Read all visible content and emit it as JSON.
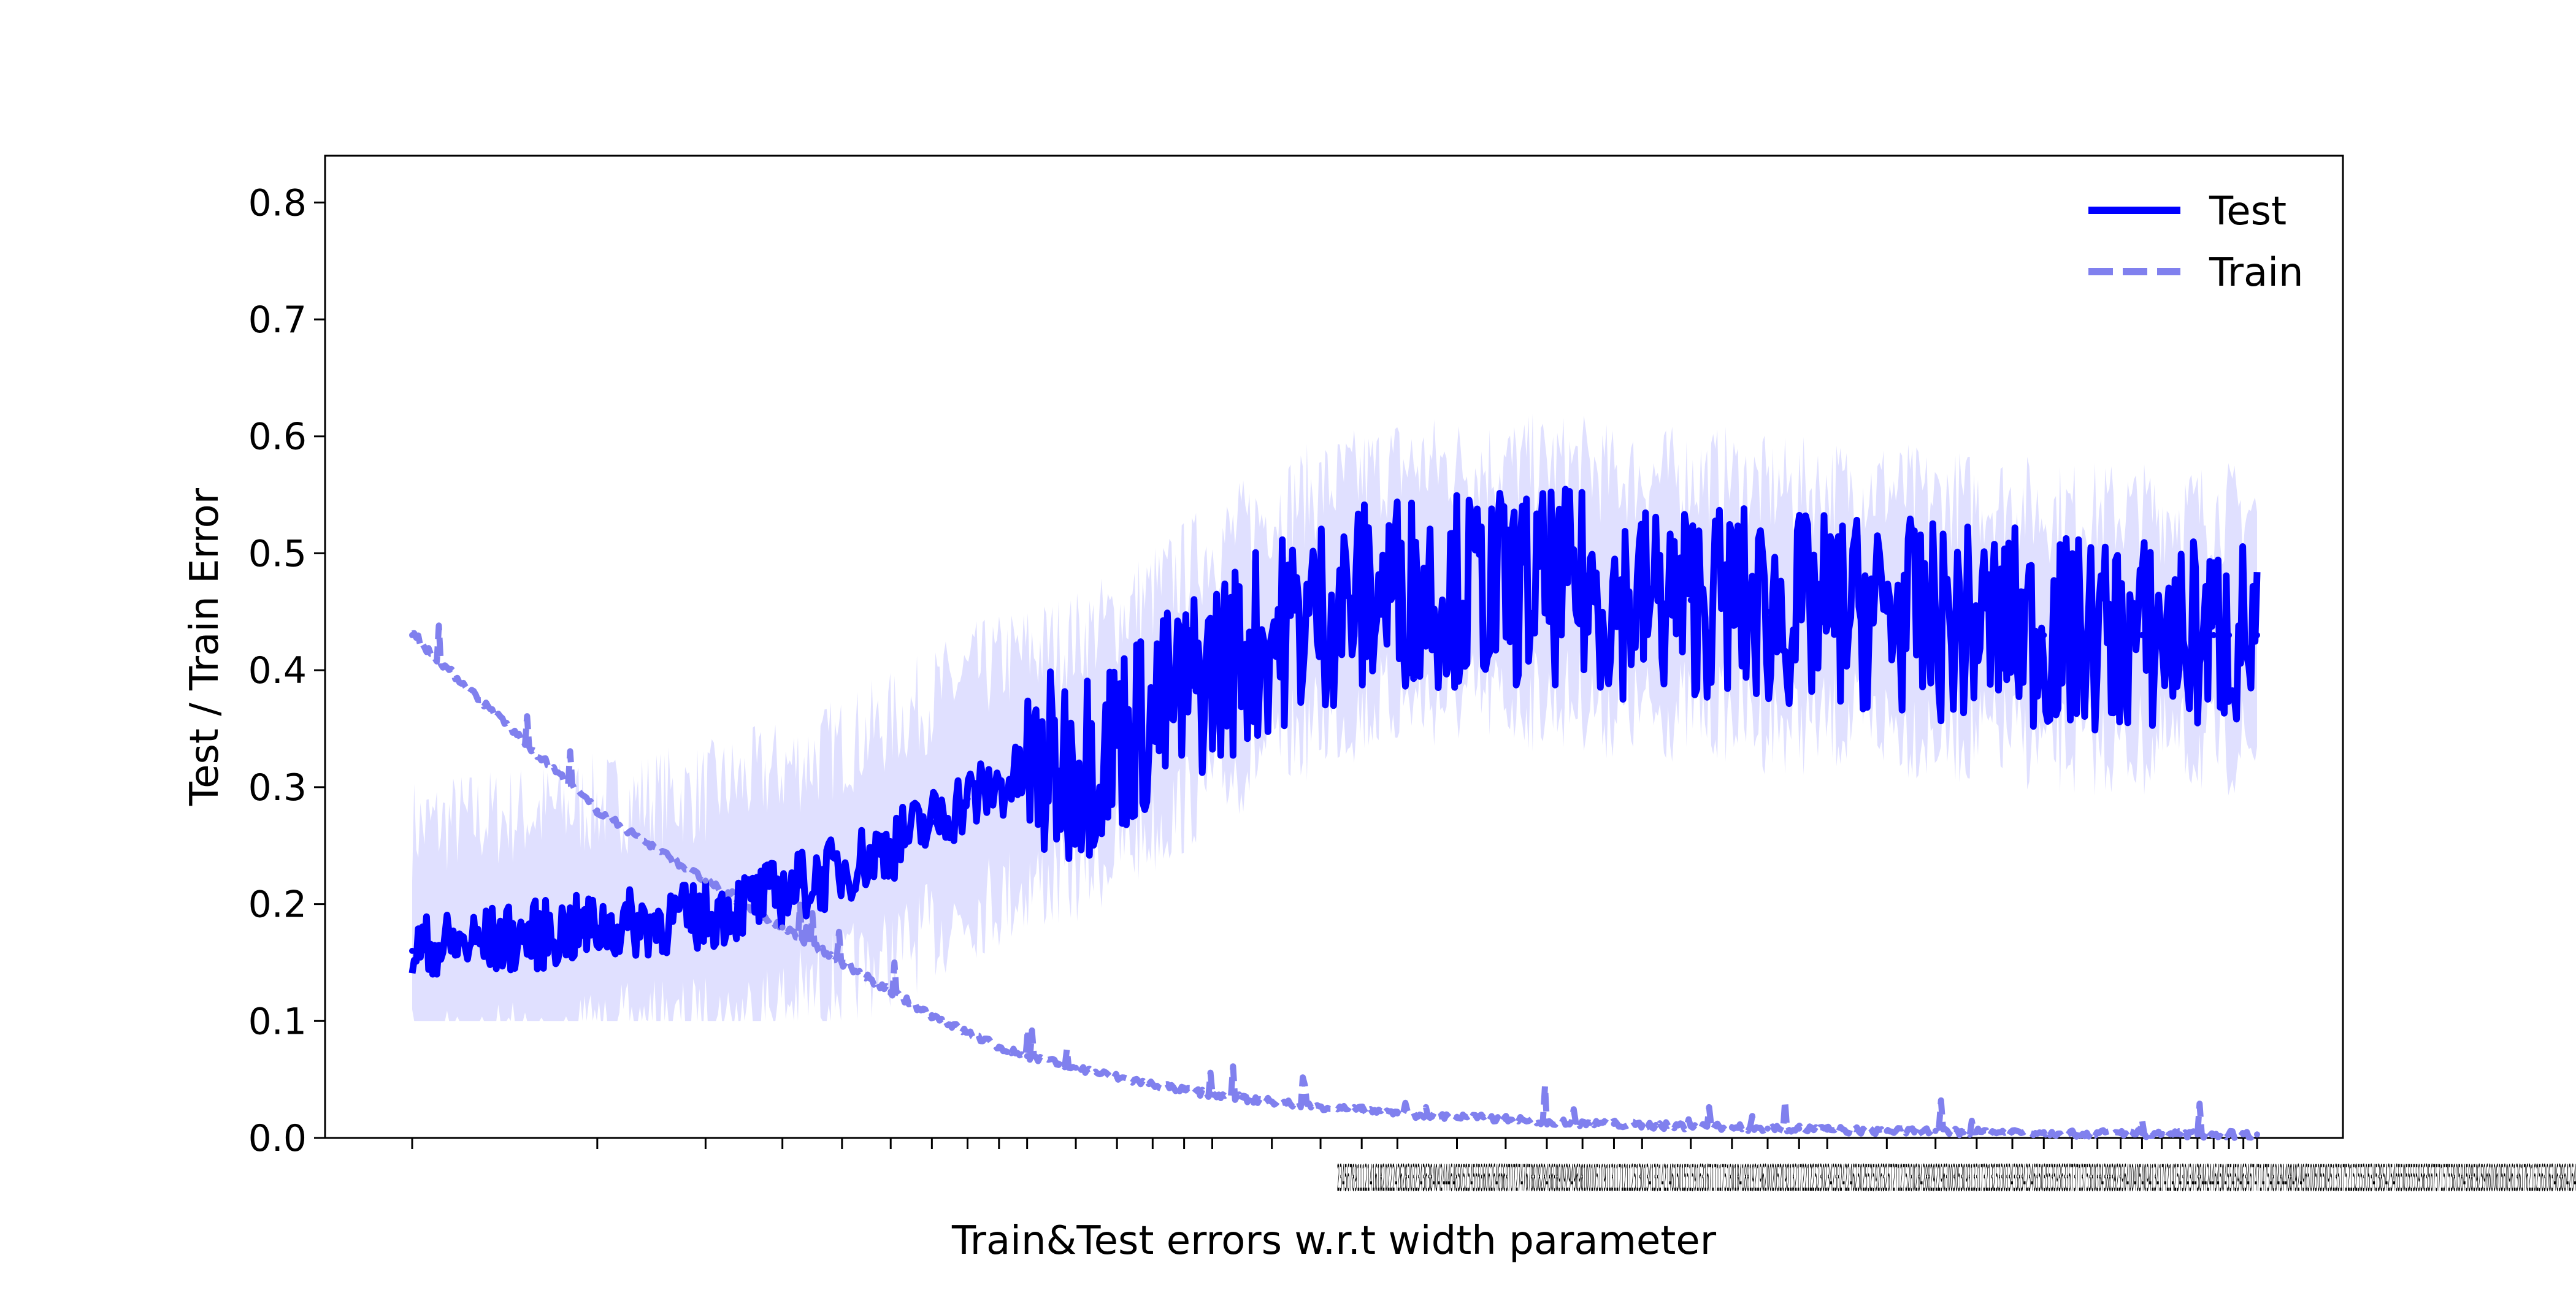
{
  "chart_data": {
    "type": "line",
    "title": "",
    "xlabel": "Train&Test errors w.r.t width parameter",
    "ylabel": "Test / Train Error",
    "ylim": [
      0.0,
      0.84
    ],
    "y_ticks": [
      "0.0",
      "0.1",
      "0.2",
      "0.3",
      "0.4",
      "0.5",
      "0.6",
      "0.7",
      "0.8"
    ],
    "x_range": [
      1,
      1000
    ],
    "x_ticks_overlapping": true,
    "x_ticks_visible_text": "2345678911121416182022242628303234363840424446485052545658606264666870727476788082848688909294969810010510911311712112513013413814214615015515916316717117518018418819219620020520921321722122523023423824224625025525926326727127528028428829229630030530931331732132533033433834234635035535936336737137538038438839239640040540941341742142543043443844244645045545946346747147548048448849249650050550951351752152553053453854254655055555956356757157558058458859259660060560961361762162563063463864264665065565966366767167568068468869269670070570971371772172573073473874274675075575976376777177578078478879279680080580981381782182583083483884284685085585986386787187588088488889289690090590991391792192593093493894294695095595996396797197598098498899299699971381",
    "grid": false,
    "legend_position": "upper right",
    "colors": {
      "test": "#0000ff",
      "train": "#8080ee",
      "band": "#0000ff"
    },
    "series": [
      {
        "name": "Test",
        "style": "solid",
        "x": [
          1,
          2,
          3,
          4,
          5,
          6,
          7,
          8,
          9,
          10,
          12,
          14,
          16,
          18,
          20,
          25,
          30,
          35,
          40,
          50,
          60,
          70,
          80,
          90,
          100,
          120,
          140,
          160,
          180,
          200,
          250,
          300,
          350,
          400,
          450,
          500,
          550,
          600,
          650,
          700,
          750,
          800,
          850,
          900,
          950,
          1000
        ],
        "y": [
          0.16,
          0.18,
          0.19,
          0.21,
          0.23,
          0.25,
          0.27,
          0.29,
          0.3,
          0.31,
          0.32,
          0.34,
          0.36,
          0.38,
          0.4,
          0.43,
          0.45,
          0.46,
          0.47,
          0.47,
          0.47,
          0.47,
          0.47,
          0.46,
          0.46,
          0.46,
          0.46,
          0.45,
          0.45,
          0.45,
          0.45,
          0.44,
          0.44,
          0.44,
          0.43,
          0.43,
          0.43,
          0.43,
          0.43,
          0.43,
          0.43,
          0.43,
          0.43,
          0.43,
          0.43,
          0.43
        ]
      },
      {
        "name": "Train",
        "style": "dashed",
        "x": [
          1,
          2,
          3,
          4,
          5,
          6,
          7,
          8,
          9,
          10,
          12,
          14,
          16,
          18,
          20,
          25,
          30,
          35,
          40,
          50,
          60,
          70,
          80,
          90,
          100,
          120,
          140,
          160,
          180,
          200,
          250,
          300,
          350,
          400,
          450,
          500,
          550,
          600,
          650,
          700,
          750,
          800,
          850,
          900,
          950,
          1000
        ],
        "y": [
          0.43,
          0.28,
          0.22,
          0.18,
          0.15,
          0.125,
          0.105,
          0.09,
          0.078,
          0.07,
          0.06,
          0.052,
          0.046,
          0.041,
          0.037,
          0.031,
          0.027,
          0.024,
          0.021,
          0.018,
          0.016,
          0.014,
          0.013,
          0.012,
          0.011,
          0.01,
          0.009,
          0.008,
          0.008,
          0.007,
          0.006,
          0.006,
          0.005,
          0.005,
          0.005,
          0.004,
          0.004,
          0.004,
          0.004,
          0.003,
          0.003,
          0.003,
          0.003,
          0.003,
          0.003,
          0.003
        ]
      }
    ]
  }
}
